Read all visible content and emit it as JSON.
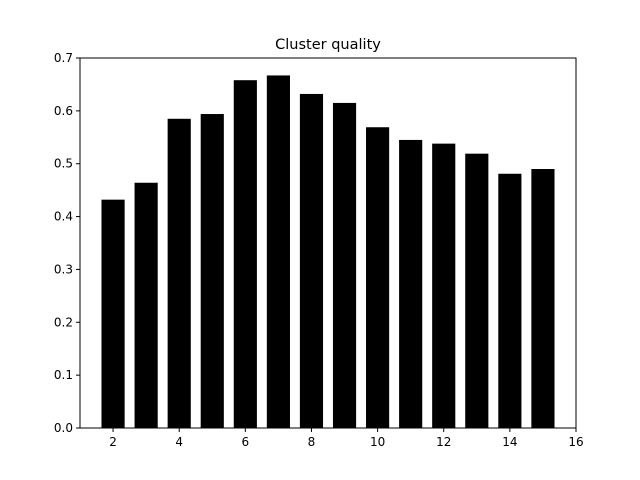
{
  "chart_data": {
    "type": "bar",
    "title": "Cluster quality",
    "xlabel": "",
    "ylabel": "",
    "x": [
      2,
      3,
      4,
      5,
      6,
      7,
      8,
      9,
      10,
      11,
      12,
      13,
      14,
      15
    ],
    "values": [
      0.432,
      0.464,
      0.585,
      0.594,
      0.658,
      0.667,
      0.632,
      0.615,
      0.569,
      0.545,
      0.538,
      0.519,
      0.481,
      0.49
    ],
    "xlim": [
      1,
      16
    ],
    "ylim": [
      0,
      0.7
    ],
    "xticks": [
      "2",
      "4",
      "6",
      "8",
      "10",
      "12",
      "14",
      "16"
    ],
    "yticks": [
      "0.0",
      "0.1",
      "0.2",
      "0.3",
      "0.4",
      "0.5",
      "0.6",
      "0.7"
    ],
    "bar_color": "#000000",
    "grid": false,
    "legend": "none"
  }
}
